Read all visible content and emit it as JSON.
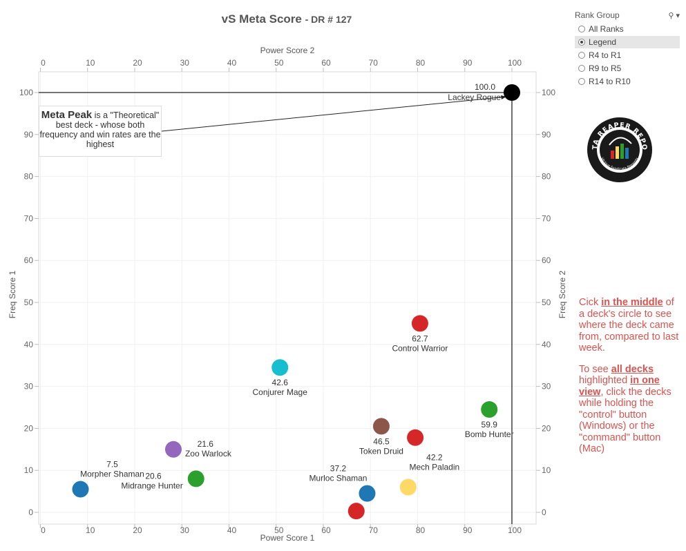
{
  "title": {
    "main": "vS Meta Score",
    "sub": "- DR # 127"
  },
  "meta_note": {
    "bold": "Meta Peak",
    "rest": "is a \"Theoretical\" best deck - whose both frequency and win rates are the highest"
  },
  "filter": {
    "header": "Rank Group",
    "options": [
      {
        "label": "All Ranks",
        "selected": false
      },
      {
        "label": "Legend",
        "selected": true
      },
      {
        "label": "R4 to R1",
        "selected": false
      },
      {
        "label": "R9 to R5",
        "selected": false
      },
      {
        "label": "R14 to R10",
        "selected": false
      }
    ]
  },
  "instructions": {
    "p1_a": "Cick ",
    "p1_b": "in the middle",
    "p1_c": " of a deck's circle to see where the deck came from, compared to last week.",
    "p2_a": "To see ",
    "p2_b": "all decks ",
    "p2_c": " highlighted ",
    "p2_d": "in one view",
    "p2_e": ", click the decks while holding the \"control\" button (Windows) or the \"command\" button (Mac)"
  },
  "logo": {
    "text": "DATA REAPER REPORT",
    "subtext": "Vicious Syndicate Presents"
  },
  "chart_data": {
    "type": "scatter",
    "xlabel": "Power Score 1",
    "x2label": "Power Score 2",
    "ylabel": "Freq Score 1",
    "y2label": "Freq Score 2",
    "xlim": [
      0,
      105
    ],
    "ylim": [
      0,
      105
    ],
    "ticks": [
      0,
      10,
      20,
      30,
      40,
      50,
      60,
      70,
      80,
      90,
      100
    ],
    "peak": {
      "x": 100,
      "y": 100,
      "score": "100.0",
      "name": "Lackey Rogue",
      "color": "#000000"
    },
    "points": [
      {
        "name": "Control Warrior",
        "score": "62.7",
        "x": 80.5,
        "y": 45,
        "color": "#d62728",
        "label": "below"
      },
      {
        "name": "Conjurer Mage",
        "score": "42.6",
        "x": 50.8,
        "y": 34.5,
        "color": "#17becf",
        "label": "below"
      },
      {
        "name": "Bomb Hunter",
        "score": "59.9",
        "x": 95.2,
        "y": 24.5,
        "color": "#2ca02c",
        "label": "below"
      },
      {
        "name": "Token Druid",
        "score": "46.5",
        "x": 72.3,
        "y": 20.5,
        "color": "#8c564b",
        "label": "below"
      },
      {
        "name": "",
        "score": "",
        "x": 79.5,
        "y": 17.8,
        "color": "#d62728",
        "label": "none"
      },
      {
        "name": "Zoo Warlock",
        "score": "21.6",
        "x": 28.2,
        "y": 15,
        "color": "#9467bd",
        "label": "right"
      },
      {
        "name": "Mech Paladin",
        "score": "42.2",
        "x": 78,
        "y": 6,
        "color": "#ffd966",
        "label": "aboveright"
      },
      {
        "name": "Midrange Hunter",
        "score": "20.6",
        "x": 33,
        "y": 8,
        "color": "#2ca02c",
        "label": "left"
      },
      {
        "name": "Morpher Shaman",
        "score": "7.5",
        "x": 8.5,
        "y": 5.5,
        "color": "#1f77b4",
        "label": "abovewide"
      },
      {
        "name": "Murloc Shaman",
        "score": "37.2",
        "x": 69.3,
        "y": 4.5,
        "color": "#1f77b4",
        "label": "aboveleft"
      },
      {
        "name": "",
        "score": "",
        "x": 67,
        "y": 0.3,
        "color": "#d62728",
        "label": "none"
      }
    ]
  }
}
